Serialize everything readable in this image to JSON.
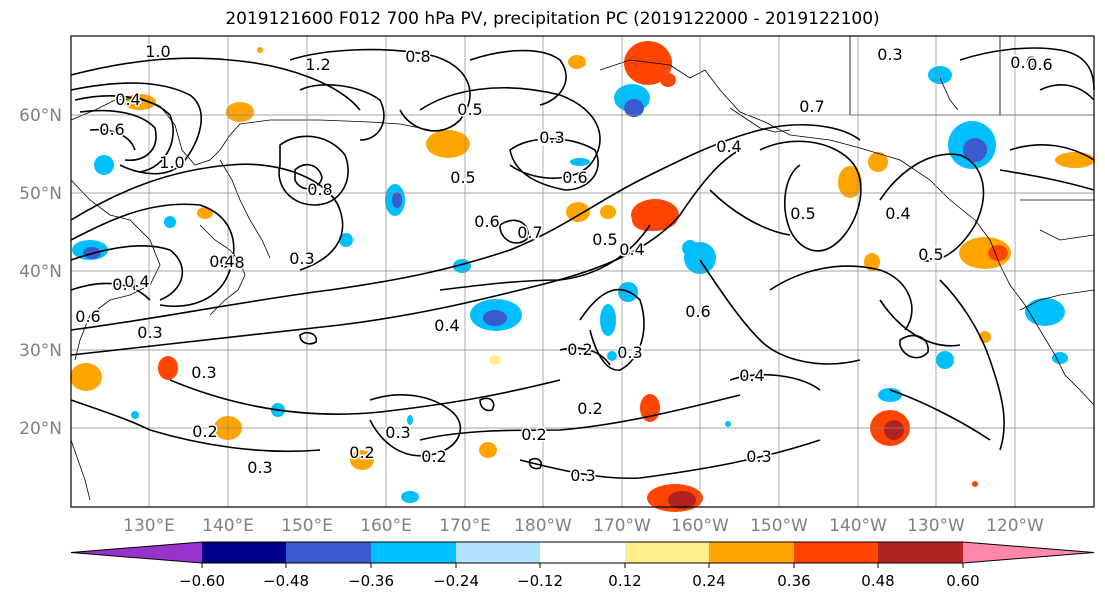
{
  "title": "2019121600 F012 700 hPa PV, precipitation PC (2019122000 - 2019122100)",
  "map": {
    "lon_labels": [
      "130°E",
      "140°E",
      "150°E",
      "160°E",
      "170°E",
      "180°W",
      "170°W",
      "160°W",
      "150°W",
      "140°W",
      "130°W",
      "120°W"
    ],
    "lat_labels": [
      "60°N",
      "50°N",
      "40°N",
      "30°N",
      "20°N"
    ],
    "label_color": "#808080",
    "contour_labels": [
      "1.0",
      "1.2",
      "0.8",
      "0.4",
      "0.6",
      "1.0",
      "0.8",
      "0.5",
      "0.7",
      "0.5",
      "0.6",
      "0.7",
      "0.5",
      "0.6",
      "0.4",
      "0.8",
      "0.3",
      "0.4",
      "0.4",
      "0.6",
      "0.4",
      "0.3",
      "0.6",
      "0.2",
      "0.2",
      "0.4",
      "0.3",
      "0.2",
      "0.3",
      "0.2",
      "0.2",
      "0.3",
      "0.3",
      "0.2",
      "0.3",
      "0.4",
      "0.3",
      "0.5",
      "0.4",
      "0.5",
      "0.3",
      "0.6",
      "0.3",
      "0.4",
      "0.7",
      "0.6"
    ]
  },
  "colorbar": {
    "colors": [
      "#9932cc",
      "#00008b",
      "#3a5bd0",
      "#00bfff",
      "#b0e2ff",
      "#ffffff",
      "#ffec8b",
      "#ffa500",
      "#ff4500",
      "#b22222",
      "#ff88aa"
    ],
    "tick_labels": [
      "−0.60",
      "−0.48",
      "−0.36",
      "−0.24",
      "−0.12",
      "0.12",
      "0.24",
      "0.36",
      "0.48",
      "0.60"
    ]
  }
}
